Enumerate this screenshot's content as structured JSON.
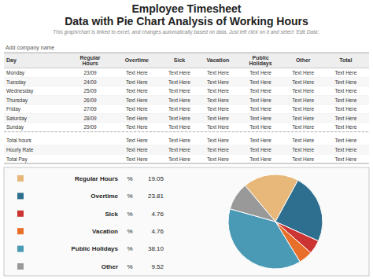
{
  "chart_data": {
    "type": "pie",
    "title": "Employee Timesheet\nData with Pie Chart Analysis of Working Hours",
    "subtitle": "This graph/chart is linked to excel, and changes automatically based on data. Just left click on it and select ‘Edit Data’.",
    "categories": [
      "Regular Hours",
      "Overtime",
      "Sick",
      "Vacation",
      "Public Holidays",
      "Other"
    ],
    "values": [
      19.05,
      23.81,
      4.76,
      4.76,
      38.1,
      9.52
    ],
    "value_labels": [
      "19.05",
      "23.81",
      "4.76",
      "4.76",
      "38.10",
      "9.52"
    ],
    "value_unit": "%",
    "colors": [
      "#e8b87a",
      "#2e6e8e",
      "#cc3333",
      "#e86f2a",
      "#4a9ab5",
      "#999999"
    ],
    "table": {
      "label": "Add company name",
      "columns": [
        "Day",
        "Regular\nHours",
        "Overtime",
        "Sick",
        "Vacation",
        "Public\nHolidays",
        "Other",
        "Total"
      ],
      "rows": [
        [
          "Monday",
          "23/09",
          "Text Here",
          "Text Here",
          "Text Here",
          "Text Here",
          "Text Here",
          "Text Here"
        ],
        [
          "Tuesday",
          "24/09",
          "Text Here",
          "Text Here",
          "Text Here",
          "Text Here",
          "Text Here",
          "Text Here"
        ],
        [
          "Wednesday",
          "25/09",
          "Text Here",
          "Text Here",
          "Text Here",
          "Text Here",
          "Text Here",
          "Text Here"
        ],
        [
          "Thursday",
          "26/09",
          "Text Here",
          "Text Here",
          "Text Here",
          "Text Here",
          "Text Here",
          "Text Here"
        ],
        [
          "Friday",
          "27/09",
          "Text Here",
          "Text Here",
          "Text Here",
          "Text Here",
          "Text Here",
          "Text Here"
        ],
        [
          "Saturday",
          "28/09",
          "Text Here",
          "Text Here",
          "Text Here",
          "Text Here",
          "Text Here",
          "Text Here"
        ],
        [
          "Sunday",
          "29/09",
          "Text Here",
          "Text Here",
          "Text Here",
          "Text Here",
          "Text Here",
          "Text Here"
        ]
      ],
      "footer_rows": [
        [
          "Total hours",
          null,
          "Text Here",
          "Text Here",
          "Text Here",
          "Text Here",
          "Text Here",
          "Text Here"
        ],
        [
          "Hourly Rate",
          null,
          "Text Here",
          "Text Here",
          "Text Here",
          "Text Here",
          "Text Here",
          "Text Here"
        ],
        [
          "Total Pay",
          null,
          "Text Here",
          "Text Here",
          "Text Here",
          "Text Here",
          "Text Here",
          "Text Here"
        ]
      ]
    }
  }
}
